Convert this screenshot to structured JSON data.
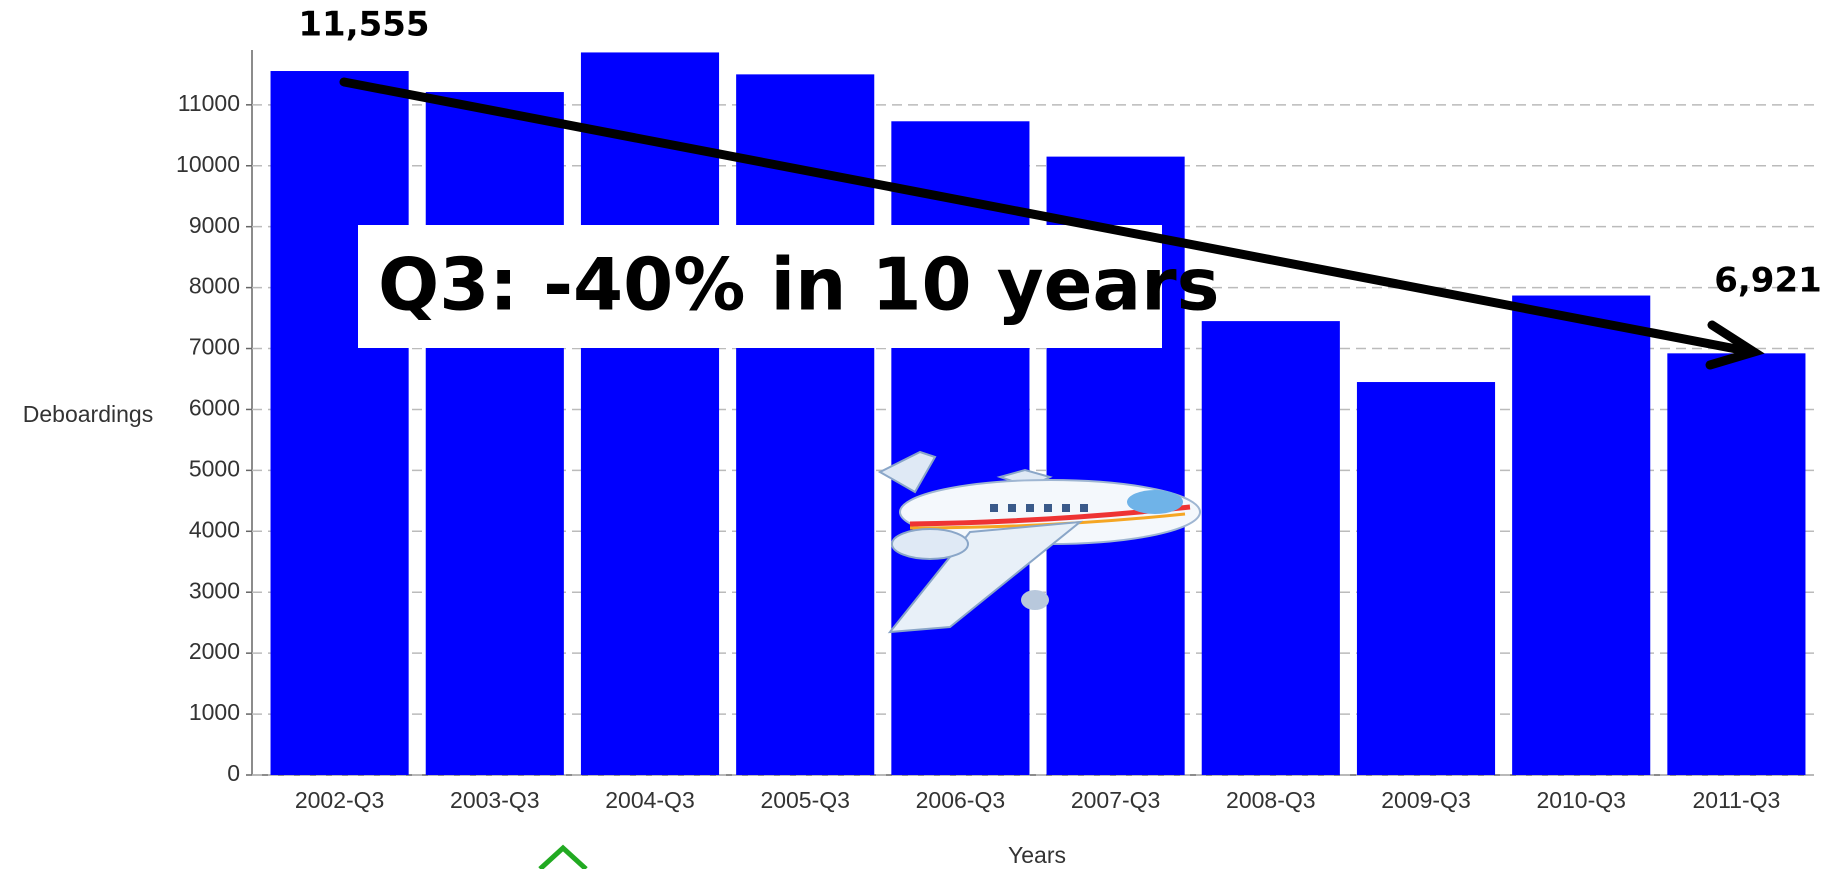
{
  "chart_data": {
    "type": "bar",
    "categories": [
      "2002-Q3",
      "2003-Q3",
      "2004-Q3",
      "2005-Q3",
      "2006-Q3",
      "2007-Q3",
      "2008-Q3",
      "2009-Q3",
      "2010-Q3",
      "2011-Q3"
    ],
    "values": [
      11555,
      11210,
      11860,
      11500,
      10730,
      10150,
      7450,
      6450,
      7870,
      6921
    ],
    "color": "#0000ff",
    "x_label": "Years",
    "y_label": "Deboardings",
    "ylim": [
      0,
      11900
    ],
    "yticks": [
      0,
      1000,
      2000,
      3000,
      4000,
      5000,
      6000,
      7000,
      8000,
      9000,
      10000,
      11000
    ],
    "grid": true,
    "annotations": [
      "11,555",
      "6,921",
      "Q3: -40% in 10 years"
    ]
  }
}
